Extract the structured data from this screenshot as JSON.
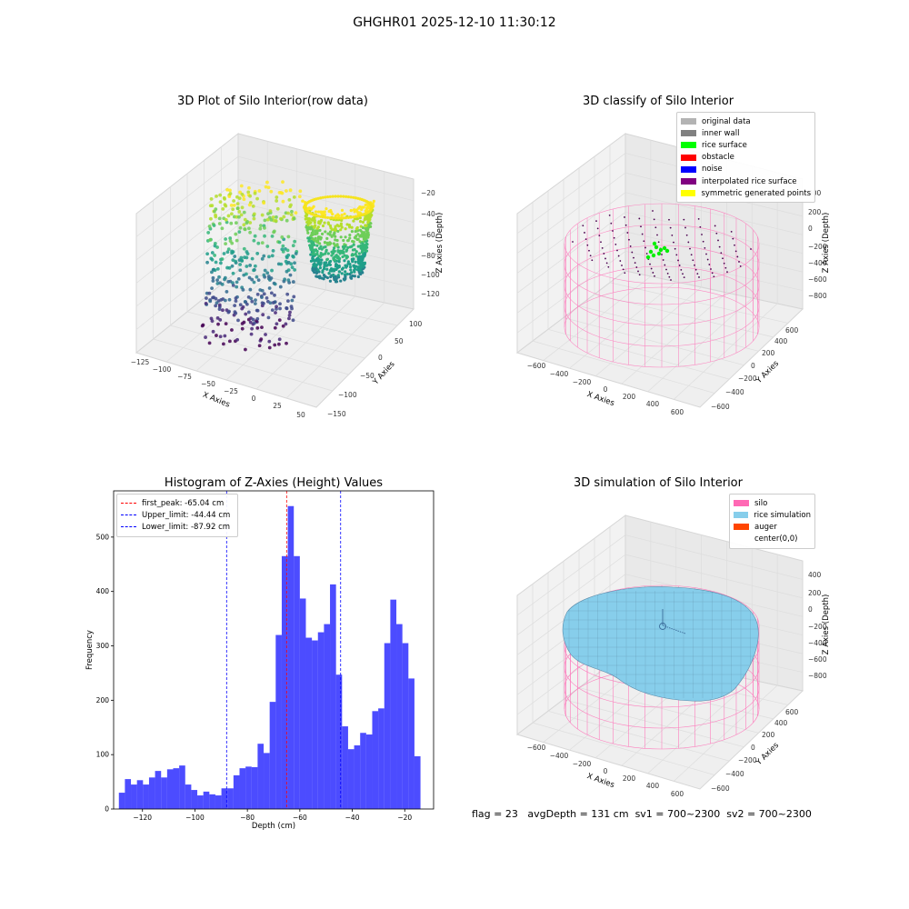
{
  "suptitle": "GHGHR01 2025-12-10 11:30:12",
  "panels": {
    "raw": {
      "title": "3D Plot of Silo Interior(row data)",
      "xlabel": "X Axies",
      "ylabel": "Y Axies",
      "zlabel": "Z Axies (Depth)",
      "xticks": [
        "−125",
        "−100",
        "−75",
        "−50",
        "−25",
        "0",
        "25",
        "50"
      ],
      "yticks": [
        "−150",
        "−100",
        "−50",
        "0",
        "50",
        "100"
      ],
      "zticks": [
        "−20",
        "−40",
        "−60",
        "−80",
        "−100",
        "−120"
      ]
    },
    "classify": {
      "title": "3D classify of Silo Interior",
      "xlabel": "X Axies",
      "ylabel": "Y Axies",
      "zlabel": "Z Axies (Depth)",
      "xticks": [
        "−600",
        "−400",
        "−200",
        "0",
        "200",
        "400",
        "600"
      ],
      "yticks": [
        "−600",
        "−400",
        "−200",
        "0",
        "200",
        "400",
        "600"
      ],
      "zticks": [
        "400",
        "200",
        "0",
        "−200",
        "−400",
        "−600",
        "−800"
      ],
      "legend": [
        {
          "label": "original data",
          "color": "#b3b3b3"
        },
        {
          "label": "inner wall",
          "color": "#808080"
        },
        {
          "label": "rice surface",
          "color": "#00ff00"
        },
        {
          "label": "obstacle",
          "color": "#ff0000"
        },
        {
          "label": "noise",
          "color": "#0000ff"
        },
        {
          "label": "interpolated rice surface",
          "color": "#800080"
        },
        {
          "label": "symmetric generated points",
          "color": "#ffff00"
        }
      ]
    },
    "sim": {
      "title": "3D simulation of Silo Interior",
      "xlabel": "X Axies",
      "ylabel": "Y Axies",
      "zlabel": "Z Axies (Depth)",
      "xticks": [
        "−600",
        "−400",
        "−200",
        "0",
        "200",
        "400",
        "600"
      ],
      "yticks": [
        "−600",
        "−400",
        "−200",
        "0",
        "200",
        "400",
        "600"
      ],
      "zticks": [
        "400",
        "200",
        "0",
        "−200",
        "−400",
        "−600",
        "−800"
      ],
      "legend": [
        {
          "label": "silo",
          "color": "#ff69b4"
        },
        {
          "label": "rice simulation",
          "color": "#87ceeb"
        },
        {
          "label": "auger",
          "color": "#ff4500"
        },
        {
          "label": "center(0,0)",
          "color": ""
        }
      ]
    },
    "histogram": {
      "title": "Histogram of Z-Axies (Height) Values",
      "legend": [
        {
          "label": "first_peak: -65.04 cm",
          "color": "#ff0000"
        },
        {
          "label": "Upper_limit: -44.44 cm",
          "color": "#0000ff"
        },
        {
          "label": "Lower_limit: -87.92 cm",
          "color": "#0000ff"
        }
      ]
    }
  },
  "status": {
    "flag": "flag = 23",
    "avgDepth": "avgDepth = 131 cm",
    "sv1": "sv1 = 700~2300",
    "sv2": "sv2 = 700~2300"
  },
  "chart_data": [
    {
      "type": "bar",
      "title": "Histogram of Z-Axies (Height) Values",
      "xlabel": "Depth (cm)",
      "ylabel": "Frequency",
      "xlim": [
        -131,
        -9
      ],
      "ylim": [
        0,
        585
      ],
      "xticks": [
        -120,
        -100,
        -80,
        -60,
        -40,
        -20
      ],
      "yticks": [
        0,
        100,
        200,
        300,
        400,
        500
      ],
      "bar_color": "#0000ff",
      "bin_start": -129,
      "bin_width": 2.3,
      "values": [
        30,
        55,
        45,
        53,
        45,
        58,
        70,
        58,
        73,
        75,
        80,
        45,
        35,
        25,
        32,
        27,
        25,
        38,
        38,
        62,
        75,
        78,
        77,
        120,
        103,
        197,
        320,
        465,
        557,
        465,
        387,
        315,
        310,
        325,
        340,
        413,
        247,
        152,
        110,
        117,
        140,
        137,
        180,
        185,
        305,
        385,
        340,
        305,
        240,
        97
      ],
      "vlines": [
        {
          "x": -65.04,
          "color": "#ff0000",
          "label": "first_peak: -65.04 cm"
        },
        {
          "x": -44.44,
          "color": "#0000ff",
          "label": "Upper_limit: -44.44 cm"
        },
        {
          "x": -87.92,
          "color": "#0000ff",
          "label": "Lower_limit: -87.92 cm"
        }
      ],
      "legend_loc": "upper left"
    },
    {
      "type": "scatter",
      "title": "3D Plot of Silo Interior(row data)",
      "xlabel": "X Axies",
      "ylabel": "Y Axies",
      "zlabel": "Z Axies (Depth)",
      "xlim": [
        -125,
        50
      ],
      "ylim": [
        -150,
        100
      ],
      "zlim": [
        -130,
        -15
      ],
      "colormap": "viridis"
    },
    {
      "type": "scatter",
      "title": "3D classify of Silo Interior",
      "xlabel": "X Axies",
      "ylabel": "Y Axies",
      "zlabel": "Z Axies (Depth)",
      "xlim": [
        -650,
        650
      ],
      "ylim": [
        -650,
        650
      ],
      "zlim": [
        -900,
        450
      ],
      "series": [
        {
          "name": "original data"
        },
        {
          "name": "inner wall"
        },
        {
          "name": "rice surface"
        },
        {
          "name": "obstacle"
        },
        {
          "name": "noise"
        },
        {
          "name": "interpolated rice surface"
        },
        {
          "name": "symmetric generated points"
        }
      ]
    },
    {
      "type": "area",
      "title": "3D simulation of Silo Interior",
      "xlabel": "X Axies",
      "ylabel": "Y Axies",
      "zlabel": "Z Axies (Depth)",
      "xlim": [
        -650,
        650
      ],
      "ylim": [
        -650,
        650
      ],
      "zlim": [
        -900,
        450
      ],
      "series": [
        {
          "name": "silo"
        },
        {
          "name": "rice simulation"
        },
        {
          "name": "auger"
        },
        {
          "name": "center(0,0)"
        }
      ]
    }
  ]
}
